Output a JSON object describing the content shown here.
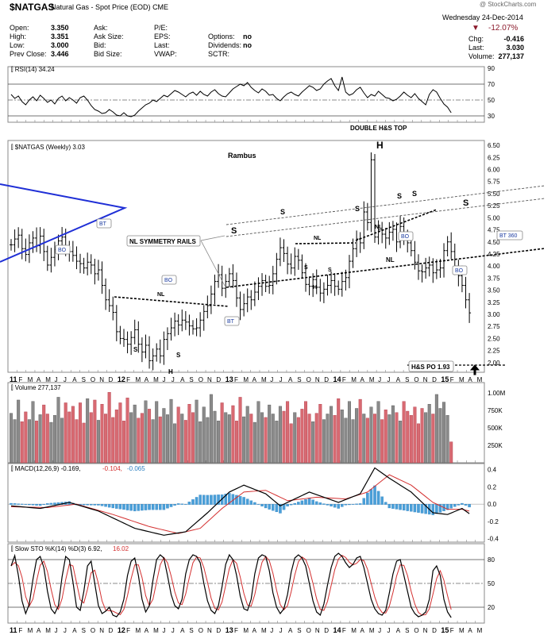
{
  "header": {
    "symbol": "$NATGAS",
    "name": "Natural Gas - Spot Price (EOD)",
    "exchange": "CME",
    "watermark": "@ StockCharts.com",
    "date": "Wednesday  24-Dec-2014",
    "change_pct": "-12.07%",
    "fields": [
      {
        "label": "Open:",
        "value": "3.350"
      },
      {
        "label": "High:",
        "value": "3.351"
      },
      {
        "label": "Low:",
        "value": "3.000"
      },
      {
        "label": "Prev Close:",
        "value": "3.446"
      }
    ],
    "col2": [
      {
        "label": "Ask:",
        "value": ""
      },
      {
        "label": "Ask Size:",
        "value": ""
      },
      {
        "label": "Bid:",
        "value": ""
      },
      {
        "label": "Bid Size:",
        "value": ""
      }
    ],
    "col3": [
      {
        "label": "P/E:",
        "value": ""
      },
      {
        "label": "EPS:",
        "value": ""
      },
      {
        "label": "Last:",
        "value": ""
      },
      {
        "label": "VWAP:",
        "value": ""
      }
    ],
    "col4": [
      {
        "label": "Options:",
        "value": "no"
      },
      {
        "label": "Dividends:",
        "value": "no"
      },
      {
        "label": "SCTR:",
        "value": ""
      }
    ],
    "right": [
      {
        "label": "Chg:",
        "value": "-0.416"
      },
      {
        "label": "Last:",
        "value": "3.030"
      },
      {
        "label": "Volume:",
        "value": "277,137"
      }
    ],
    "down_color": "#8b1a2b"
  },
  "chart_data": [
    {
      "type": "line",
      "name": "RSI(14) 34.24",
      "ylim": [
        22,
        92
      ],
      "yticks": [
        90,
        70,
        50,
        30
      ],
      "guides": [
        70,
        30
      ],
      "midline": 50,
      "values": [
        57,
        52,
        55,
        48,
        44,
        50,
        54,
        49,
        56,
        52,
        47,
        50,
        45,
        52,
        55,
        49,
        53,
        50,
        46,
        53,
        55,
        50,
        43,
        38,
        36,
        33,
        34,
        38,
        35,
        31,
        30,
        34,
        30,
        29,
        31,
        36,
        40,
        44,
        46,
        50,
        48,
        52,
        56,
        54,
        58,
        62,
        60,
        57,
        54,
        58,
        60,
        56,
        61,
        57,
        55,
        60,
        63,
        58,
        55,
        54,
        59,
        64,
        67,
        70,
        68,
        72,
        66,
        62,
        59,
        64,
        61,
        56,
        57,
        52,
        49,
        54,
        58,
        60,
        57,
        55,
        60,
        64,
        68,
        66,
        62,
        64,
        70,
        74,
        77,
        68,
        62,
        79,
        60,
        56,
        58,
        63,
        66,
        59,
        53,
        57,
        55,
        61,
        57,
        53,
        52,
        49,
        51,
        55,
        60,
        56,
        53,
        58,
        52,
        48,
        44,
        57,
        63,
        60,
        52,
        45,
        41,
        34
      ]
    },
    {
      "type": "bar",
      "name": "$NATGAS (Weekly) 3.03",
      "ylim": [
        1.8,
        6.6
      ],
      "yticks": [
        6.5,
        6.25,
        6.0,
        5.75,
        5.5,
        5.25,
        5.0,
        4.75,
        4.5,
        4.25,
        4.0,
        3.75,
        3.5,
        3.25,
        3.0,
        2.75,
        2.5,
        2.25,
        2.0
      ],
      "last_value": "3.03",
      "closes": [
        4.44,
        4.56,
        4.64,
        4.36,
        4.24,
        4.48,
        4.58,
        4.42,
        4.62,
        4.3,
        4.02,
        4.18,
        4.34,
        4.52,
        4.6,
        4.38,
        4.3,
        4.22,
        4.1,
        4.05,
        3.96,
        4.08,
        4.02,
        3.84,
        3.92,
        3.6,
        3.3,
        3.18,
        3.04,
        2.64,
        2.5,
        2.48,
        2.38,
        2.52,
        2.68,
        2.38,
        2.22,
        2.36,
        2.04,
        2.14,
        2.28,
        2.14,
        2.48,
        2.6,
        2.72,
        2.86,
        2.78,
        2.88,
        2.84,
        2.76,
        2.7,
        2.72,
        2.88,
        3.06,
        3.18,
        3.42,
        3.68,
        3.82,
        3.54,
        3.68,
        3.84,
        3.7,
        3.34,
        3.1,
        3.22,
        3.36,
        3.3,
        3.46,
        3.58,
        3.7,
        3.58,
        3.6,
        3.84,
        4.14,
        4.38,
        4.26,
        4.04,
        3.96,
        4.2,
        4.12,
        3.86,
        3.62,
        3.58,
        3.72,
        3.56,
        3.44,
        3.52,
        3.6,
        3.7,
        3.58,
        3.52,
        3.68,
        3.76,
        4.1,
        4.36,
        4.56,
        4.48,
        5.12,
        4.9,
        6.2,
        4.6,
        4.75,
        4.66,
        4.58,
        4.7,
        4.76,
        4.5,
        4.82,
        4.6,
        4.48,
        4.32,
        4.08,
        3.9,
        3.88,
        3.96,
        4.02,
        3.86,
        3.92,
        3.96,
        4.32,
        4.5,
        4.3,
        4.0,
        3.8,
        3.6,
        3.3,
        3.03
      ]
    },
    {
      "type": "bar",
      "name": "Volume 277,137",
      "ylim": [
        0,
        1150000
      ],
      "ytick_labels": [
        "1.00M",
        "750K",
        "500K",
        "250K"
      ],
      "yticks": [
        1000000,
        750000,
        500000,
        250000
      ],
      "values": [
        710,
        620,
        900,
        590,
        730,
        620,
        880,
        600,
        690,
        830,
        700,
        580,
        680,
        940,
        640,
        860,
        730,
        810,
        620,
        860,
        570,
        920,
        720,
        900,
        610,
        840,
        700,
        1010,
        650,
        760,
        860,
        600,
        930,
        720,
        830,
        640,
        710,
        890,
        770,
        620,
        880,
        660,
        780,
        690,
        910,
        560,
        800,
        700,
        610,
        840,
        720,
        900,
        590,
        800,
        650,
        980,
        740,
        600,
        860,
        720,
        690,
        820,
        600,
        940,
        660,
        810,
        700,
        580,
        880,
        720,
        650,
        830,
        700,
        600,
        810,
        740,
        880,
        560,
        720,
        650,
        770,
        880,
        700,
        590,
        710,
        840,
        620,
        700,
        810,
        680,
        920,
        760,
        640,
        880,
        620,
        780,
        910,
        700,
        640,
        800,
        700,
        880,
        620,
        760,
        690,
        820,
        720,
        600,
        880,
        740,
        680,
        800,
        560,
        780,
        720,
        840,
        700,
        980,
        780,
        870,
        680,
        300
      ],
      "colors_hint": "up=#8a8a8a, down=#d86a72"
    },
    {
      "type": "line",
      "name": "MACD(12,26,9) -0.169, -0.104, -0.065",
      "legend": [
        {
          "text": "MACD(12,26,9)",
          "color": "#000000"
        },
        {
          "text": "-0.169",
          "color": "#000000"
        },
        {
          "text": "-0.104",
          "color": "#d43030"
        },
        {
          "text": "-0.065",
          "color": "#2a7fc0"
        }
      ],
      "ylim": [
        -0.44,
        0.47
      ],
      "yticks": [
        0.4,
        0.2,
        0.0,
        -0.2,
        -0.4
      ],
      "macd_keypoints": [
        [
          0,
          -0.02
        ],
        [
          8,
          -0.05
        ],
        [
          16,
          0.02
        ],
        [
          24,
          -0.08
        ],
        [
          34,
          -0.28
        ],
        [
          42,
          -0.36
        ],
        [
          48,
          -0.32
        ],
        [
          54,
          -0.1
        ],
        [
          60,
          0.14
        ],
        [
          64,
          0.22
        ],
        [
          70,
          0.12
        ],
        [
          74,
          -0.02
        ],
        [
          82,
          0.14
        ],
        [
          90,
          0.02
        ],
        [
          96,
          0.12
        ],
        [
          100,
          0.42
        ],
        [
          104,
          0.3
        ],
        [
          110,
          0.14
        ],
        [
          116,
          -0.1
        ],
        [
          120,
          -0.12
        ],
        [
          124,
          -0.05
        ],
        [
          128,
          -0.17
        ]
      ],
      "signal_keypoints": [
        [
          0,
          -0.03
        ],
        [
          10,
          -0.04
        ],
        [
          18,
          0.0
        ],
        [
          28,
          -0.12
        ],
        [
          38,
          -0.26
        ],
        [
          46,
          -0.34
        ],
        [
          52,
          -0.28
        ],
        [
          58,
          -0.05
        ],
        [
          64,
          0.14
        ],
        [
          70,
          0.16
        ],
        [
          76,
          0.04
        ],
        [
          84,
          0.08
        ],
        [
          92,
          0.06
        ],
        [
          98,
          0.14
        ],
        [
          104,
          0.34
        ],
        [
          110,
          0.22
        ],
        [
          116,
          0.02
        ],
        [
          120,
          -0.06
        ],
        [
          124,
          -0.06
        ],
        [
          128,
          -0.1
        ]
      ]
    },
    {
      "type": "line",
      "name": "Slow STO %K(14) %D(3) 6.92, 16.02",
      "legend": [
        {
          "text": "Slow STO %K(14) %D(3)",
          "color": "#000000"
        },
        {
          "text": "6.92",
          "color": "#000000"
        },
        {
          "text": "16.02",
          "color": "#d43030"
        }
      ],
      "ylim": [
        0,
        100
      ],
      "yticks": [
        80,
        50,
        20
      ],
      "values": [
        72,
        85,
        60,
        28,
        12,
        24,
        55,
        80,
        84,
        70,
        40,
        18,
        12,
        22,
        58,
        84,
        80,
        52,
        20,
        16,
        40,
        72,
        78,
        50,
        22,
        12,
        15,
        20,
        10,
        8,
        14,
        30,
        60,
        78,
        82,
        60,
        30,
        14,
        22,
        54,
        80,
        86,
        82,
        60,
        36,
        22,
        18,
        30,
        62,
        80,
        86,
        84,
        76,
        50,
        28,
        16,
        12,
        22,
        46,
        74,
        86,
        80,
        60,
        34,
        18,
        16,
        30,
        62,
        82,
        86,
        84,
        66,
        38,
        20,
        12,
        18,
        36,
        64,
        82,
        86,
        82,
        72,
        50,
        28,
        14,
        10,
        24,
        48,
        70,
        84,
        88,
        84,
        76,
        70,
        74,
        82,
        84,
        70,
        50,
        30,
        18,
        12,
        10,
        16,
        38,
        62,
        78,
        80,
        60,
        40,
        20,
        12,
        8,
        10,
        14,
        30,
        66,
        72,
        60,
        30,
        14,
        7
      ]
    }
  ],
  "annotations": {
    "rambus": "Rambus",
    "double_hs": "DOUBLE H&S TOP",
    "nl_symmetry": "NL SYMMETRY RAILS",
    "hs_po": "H&S PO 1.93",
    "bt360": "BT 360",
    "bo": "BO",
    "bt": "BT",
    "nl": "NL",
    "s": "S",
    "h": "H"
  },
  "x_axis": {
    "months": [
      "11",
      "F",
      "M",
      "A",
      "M",
      "J",
      "J",
      "A",
      "S",
      "O",
      "N",
      "D",
      "12",
      "F",
      "M",
      "A",
      "M",
      "J",
      "J",
      "A",
      "S",
      "O",
      "N",
      "D",
      "13",
      "F",
      "M",
      "A",
      "M",
      "J",
      "J",
      "A",
      "S",
      "O",
      "N",
      "D",
      "14",
      "F",
      "M",
      "A",
      "M",
      "J",
      "J",
      "A",
      "S",
      "O",
      "N",
      "D",
      "15",
      "F",
      "M",
      "A",
      "M"
    ],
    "bold": [
      "11",
      "12",
      "13",
      "14",
      "15"
    ]
  }
}
